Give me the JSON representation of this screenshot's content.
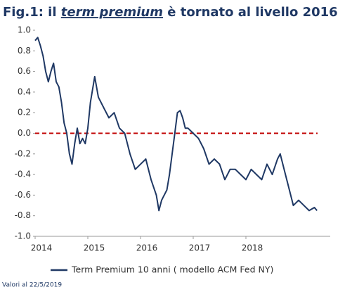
{
  "chart_data": {
    "type": "line",
    "title": [
      "Fig.1: il ",
      "term premium",
      " è tornato al livello 2016"
    ],
    "note": "Valori al 22/5/2019",
    "xlim": [
      2014,
      2019.6
    ],
    "xticks": [
      2014,
      2015,
      2016,
      2017,
      2018
    ],
    "ylim": [
      -1,
      1
    ],
    "yticks": [
      {
        "value": 1,
        "label": "1.0"
      },
      0.8,
      0.6,
      0.4,
      0.2,
      {
        "value": 0,
        "label": "0.0"
      },
      -0.2,
      -0.4,
      -0.6,
      -0.8,
      {
        "value": -1,
        "label": "-1.0"
      }
    ],
    "reference_line": {
      "value": 0,
      "color": "#c00000"
    },
    "legend": "bottom",
    "series": [
      {
        "name": "Term Premium 10 anni ( modello ACM Fed NY)",
        "color": "#1f3864",
        "x": [
          2014.0,
          2014.05,
          2014.1,
          2014.15,
          2014.2,
          2014.25,
          2014.3,
          2014.35,
          2014.4,
          2014.45,
          2014.5,
          2014.55,
          2014.6,
          2014.65,
          2014.7,
          2014.75,
          2014.8,
          2014.85,
          2014.9,
          2014.95,
          2015.0,
          2015.05,
          2015.13,
          2015.2,
          2015.3,
          2015.4,
          2015.5,
          2015.6,
          2015.7,
          2015.8,
          2015.9,
          2016.0,
          2016.1,
          2016.2,
          2016.3,
          2016.35,
          2016.4,
          2016.5,
          2016.55,
          2016.6,
          2016.65,
          2016.7,
          2016.75,
          2016.8,
          2016.85,
          2016.9,
          2017.0,
          2017.1,
          2017.2,
          2017.3,
          2017.4,
          2017.5,
          2017.6,
          2017.7,
          2017.8,
          2017.9,
          2018.0,
          2018.1,
          2018.2,
          2018.3,
          2018.4,
          2018.5,
          2018.6,
          2018.65,
          2018.7,
          2018.8,
          2018.9,
          2019.0,
          2019.1,
          2019.2,
          2019.3,
          2019.35
        ],
        "values": [
          0.9,
          0.93,
          0.85,
          0.75,
          0.6,
          0.5,
          0.6,
          0.68,
          0.5,
          0.45,
          0.3,
          0.1,
          0.0,
          -0.2,
          -0.3,
          -0.1,
          0.05,
          -0.1,
          -0.05,
          -0.1,
          0.05,
          0.3,
          0.55,
          0.35,
          0.25,
          0.15,
          0.2,
          0.05,
          0.0,
          -0.2,
          -0.35,
          -0.3,
          -0.25,
          -0.45,
          -0.6,
          -0.75,
          -0.65,
          -0.55,
          -0.4,
          -0.2,
          0.0,
          0.2,
          0.22,
          0.15,
          0.05,
          0.05,
          0.0,
          -0.05,
          -0.15,
          -0.3,
          -0.25,
          -0.3,
          -0.45,
          -0.35,
          -0.35,
          -0.4,
          -0.45,
          -0.35,
          -0.4,
          -0.45,
          -0.3,
          -0.4,
          -0.25,
          -0.2,
          -0.3,
          -0.5,
          -0.7,
          -0.65,
          -0.7,
          -0.75,
          -0.72,
          -0.75
        ]
      }
    ]
  }
}
